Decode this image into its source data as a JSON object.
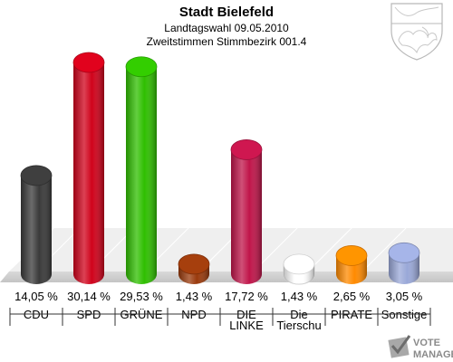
{
  "header": {
    "title": "Stadt Bielefeld",
    "subtitle1": "Landtagswahl 09.05.2010",
    "subtitle2": "Zweitstimmen Stimmbezirk 001.4"
  },
  "watermark": {
    "line1": "VOTE",
    "line2": "MANAGER"
  },
  "chart_data": {
    "type": "bar",
    "title": "Stadt Bielefeld",
    "subtitle": "Landtagswahl 09.05.2010 · Zweitstimmen Stimmbezirk 001.4",
    "categories": [
      "CDU",
      "SPD",
      "GRÜNE",
      "NPD",
      "DIE LINKE",
      "Die Tierschu",
      "PIRATE",
      "Sonstige"
    ],
    "category_lines": [
      [
        "CDU"
      ],
      [
        "SPD"
      ],
      [
        "GRÜNE"
      ],
      [
        "NPD"
      ],
      [
        "DIE",
        "LINKE"
      ],
      [
        "Die",
        "Tierschu"
      ],
      [
        "PIRATE"
      ],
      [
        "Sonstige"
      ]
    ],
    "values": [
      14.05,
      30.14,
      29.53,
      1.43,
      17.72,
      1.43,
      2.65,
      3.05
    ],
    "value_labels": [
      "14,05 %",
      "30,14 %",
      "29,53 %",
      "1,43 %",
      "17,72 %",
      "1,43 %",
      "2,65 %",
      "3,05 %"
    ],
    "colors": [
      "#3a3a3a",
      "#d0021b",
      "#2fbf00",
      "#9a3a0c",
      "#c0154a",
      "#ffffff",
      "#ff8a00",
      "#9aa8d8"
    ],
    "ylim": [
      0,
      30.14
    ],
    "grid": true,
    "legend": "none"
  }
}
